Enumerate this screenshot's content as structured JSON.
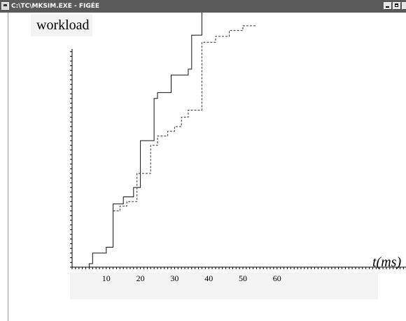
{
  "window": {
    "title": "C:\\TC\\MKSIM.EXE - FIGÉE",
    "icon": "dos-window-icon",
    "buttons": [
      "minimize-icon",
      "maximize-icon",
      "close-icon"
    ]
  },
  "chart_data": {
    "type": "line",
    "step": true,
    "xlabel": "t(ms)",
    "ylabel": "workload",
    "xlim": [
      0,
      80
    ],
    "ylim": [
      0,
      100
    ],
    "x_ticks": [
      10,
      20,
      30,
      40,
      50,
      60
    ],
    "grid": false,
    "series": [
      {
        "style": "solid",
        "points": [
          [
            5,
            0
          ],
          [
            5,
            1.5
          ],
          [
            6,
            1.5
          ],
          [
            6,
            6
          ],
          [
            10,
            6
          ],
          [
            10,
            8.5
          ],
          [
            12,
            8.5
          ],
          [
            12,
            27
          ],
          [
            15,
            27
          ],
          [
            15,
            30
          ],
          [
            18,
            30
          ],
          [
            18,
            34
          ],
          [
            20,
            34
          ],
          [
            20,
            54
          ],
          [
            24,
            54
          ],
          [
            24,
            72
          ],
          [
            25,
            72
          ],
          [
            25,
            74.5
          ],
          [
            29,
            74.5
          ],
          [
            29,
            82
          ],
          [
            34,
            82
          ],
          [
            34,
            84.5
          ],
          [
            35,
            84.5
          ],
          [
            35,
            99
          ],
          [
            38,
            99
          ],
          [
            38,
            112
          ]
        ]
      },
      {
        "style": "dashed",
        "points": [
          [
            12,
            24
          ],
          [
            14,
            24
          ],
          [
            14,
            26
          ],
          [
            16,
            26
          ],
          [
            16,
            28
          ],
          [
            19,
            28
          ],
          [
            19,
            40
          ],
          [
            23,
            40
          ],
          [
            23,
            52
          ],
          [
            25,
            52
          ],
          [
            25,
            56
          ],
          [
            28,
            56
          ],
          [
            28,
            58
          ],
          [
            30,
            58
          ],
          [
            30,
            60
          ],
          [
            32,
            60
          ],
          [
            32,
            64
          ],
          [
            34,
            64
          ],
          [
            34,
            67
          ],
          [
            38,
            67
          ],
          [
            38,
            96
          ],
          [
            42,
            96
          ],
          [
            42,
            98.5
          ],
          [
            46,
            98.5
          ],
          [
            46,
            101
          ],
          [
            50,
            101
          ],
          [
            50,
            103
          ],
          [
            54,
            103
          ]
        ]
      }
    ]
  }
}
